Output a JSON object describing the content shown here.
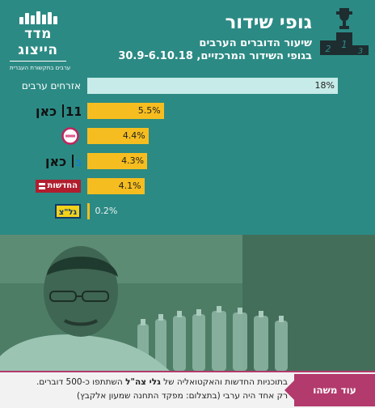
{
  "header": {
    "title": "גופי שידור",
    "subtitle_line1": "שיעור הדוברים הערבים",
    "subtitle_line2": "בגופי השידור המרכזיים, 30.9-6.10.18"
  },
  "logo": {
    "name": "מדד הייצוג",
    "tagline": "ערבים בתקשורת העברית"
  },
  "podium": {
    "icon": "podium-trophy-icon",
    "places": [
      "1",
      "2",
      "3"
    ]
  },
  "colors": {
    "panel": "#2c8a84",
    "bar_highlight": "#c6ebe8",
    "bar_main": "#f5bd1f",
    "accent": "#b23a6c"
  },
  "chart_data": {
    "type": "bar",
    "orientation": "horizontal",
    "title": "גופי שידור",
    "subtitle": "שיעור הדוברים הערבים בגופי השידור המרכזיים, 30.9-6.10.18",
    "categories": [
      "אזרחים ערבים",
      "כאן 11",
      "רשת",
      "כאן ב",
      "חדשות 12",
      "גל\"צ"
    ],
    "category_labels_text": [
      "אזרחים ערבים",
      "",
      "",
      "",
      "החדשות",
      "גל\"צ"
    ],
    "category_icons": [
      "",
      "kan11-logo-icon",
      "reshet13-logo-icon",
      "kan-bet-logo-icon",
      "hadashot-logo-icon",
      "galatz-logo-icon"
    ],
    "values": [
      18,
      5.5,
      4.4,
      4.3,
      4.1,
      0.2
    ],
    "value_labels": [
      "18%",
      "5.5%",
      "4.4%",
      "4.3%",
      "4.1%",
      "0.2%"
    ],
    "xlim": [
      0,
      18
    ],
    "grid": false,
    "legend": "none"
  },
  "footer": {
    "more_label": "עוד משהו",
    "caption_prefix": "בתוכניות החדשות והאקטואליה של ",
    "caption_bold": "גלי צה\"ל",
    "caption_suffix": " השתתפו כ-500 דוברים.",
    "caption_line2": "רק אחד היה ערבי (בתצלום: מפקד התחנה שמעון אלקבץ)"
  }
}
